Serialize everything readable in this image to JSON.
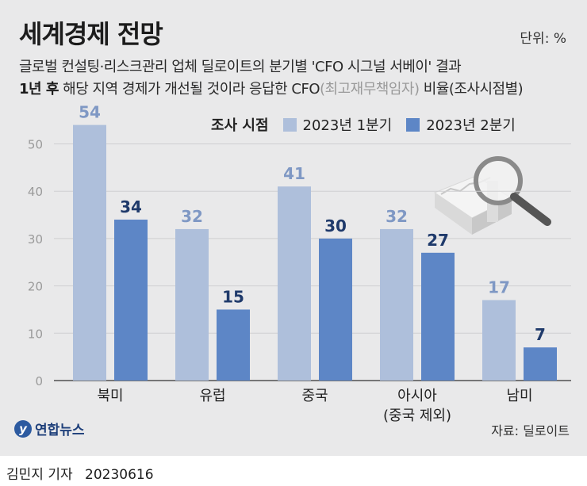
{
  "header": {
    "title": "세계경제 전망",
    "unit": "단위: %",
    "subtitle_line1": "글로벌 컨설팅·리스크관리 업체 딜로이트의 분기별 'CFO 시그널 서베이' 결과",
    "subtitle_line2_bold": "1년 후",
    "subtitle_line2_a": " 해당 지역 경제가 개선될 것이라 응답한 CFO",
    "subtitle_line2_muted": "(최고재무책임자)",
    "subtitle_line2_b": " 비율(조사시점별)"
  },
  "legend": {
    "title": "조사 시점",
    "items": [
      "2023년 1분기",
      "2023년 2분기"
    ]
  },
  "colors": {
    "series1": "#aebfdb",
    "series2": "#5d86c6",
    "label1": "#7f98c4",
    "label2": "#1f3a6b",
    "background": "#e9e9ea"
  },
  "chart_data": {
    "type": "bar",
    "categories": [
      "북미",
      "유럽",
      "중국",
      "아시아",
      "남미"
    ],
    "category_sublabels": [
      "",
      "",
      "",
      "(중국 제외)",
      ""
    ],
    "series": [
      {
        "name": "2023년 1분기",
        "values": [
          54,
          32,
          41,
          32,
          17
        ]
      },
      {
        "name": "2023년 2분기",
        "values": [
          34,
          15,
          30,
          27,
          7
        ]
      }
    ],
    "yticks": [
      0,
      10,
      20,
      30,
      40,
      50
    ],
    "ylim": [
      0,
      55
    ],
    "grid": true
  },
  "footer": {
    "logo_text": "연합뉴스",
    "logo_mark": "y",
    "source": "자료: 딜로이트",
    "author": "김민지 기자",
    "date": "20230616"
  }
}
